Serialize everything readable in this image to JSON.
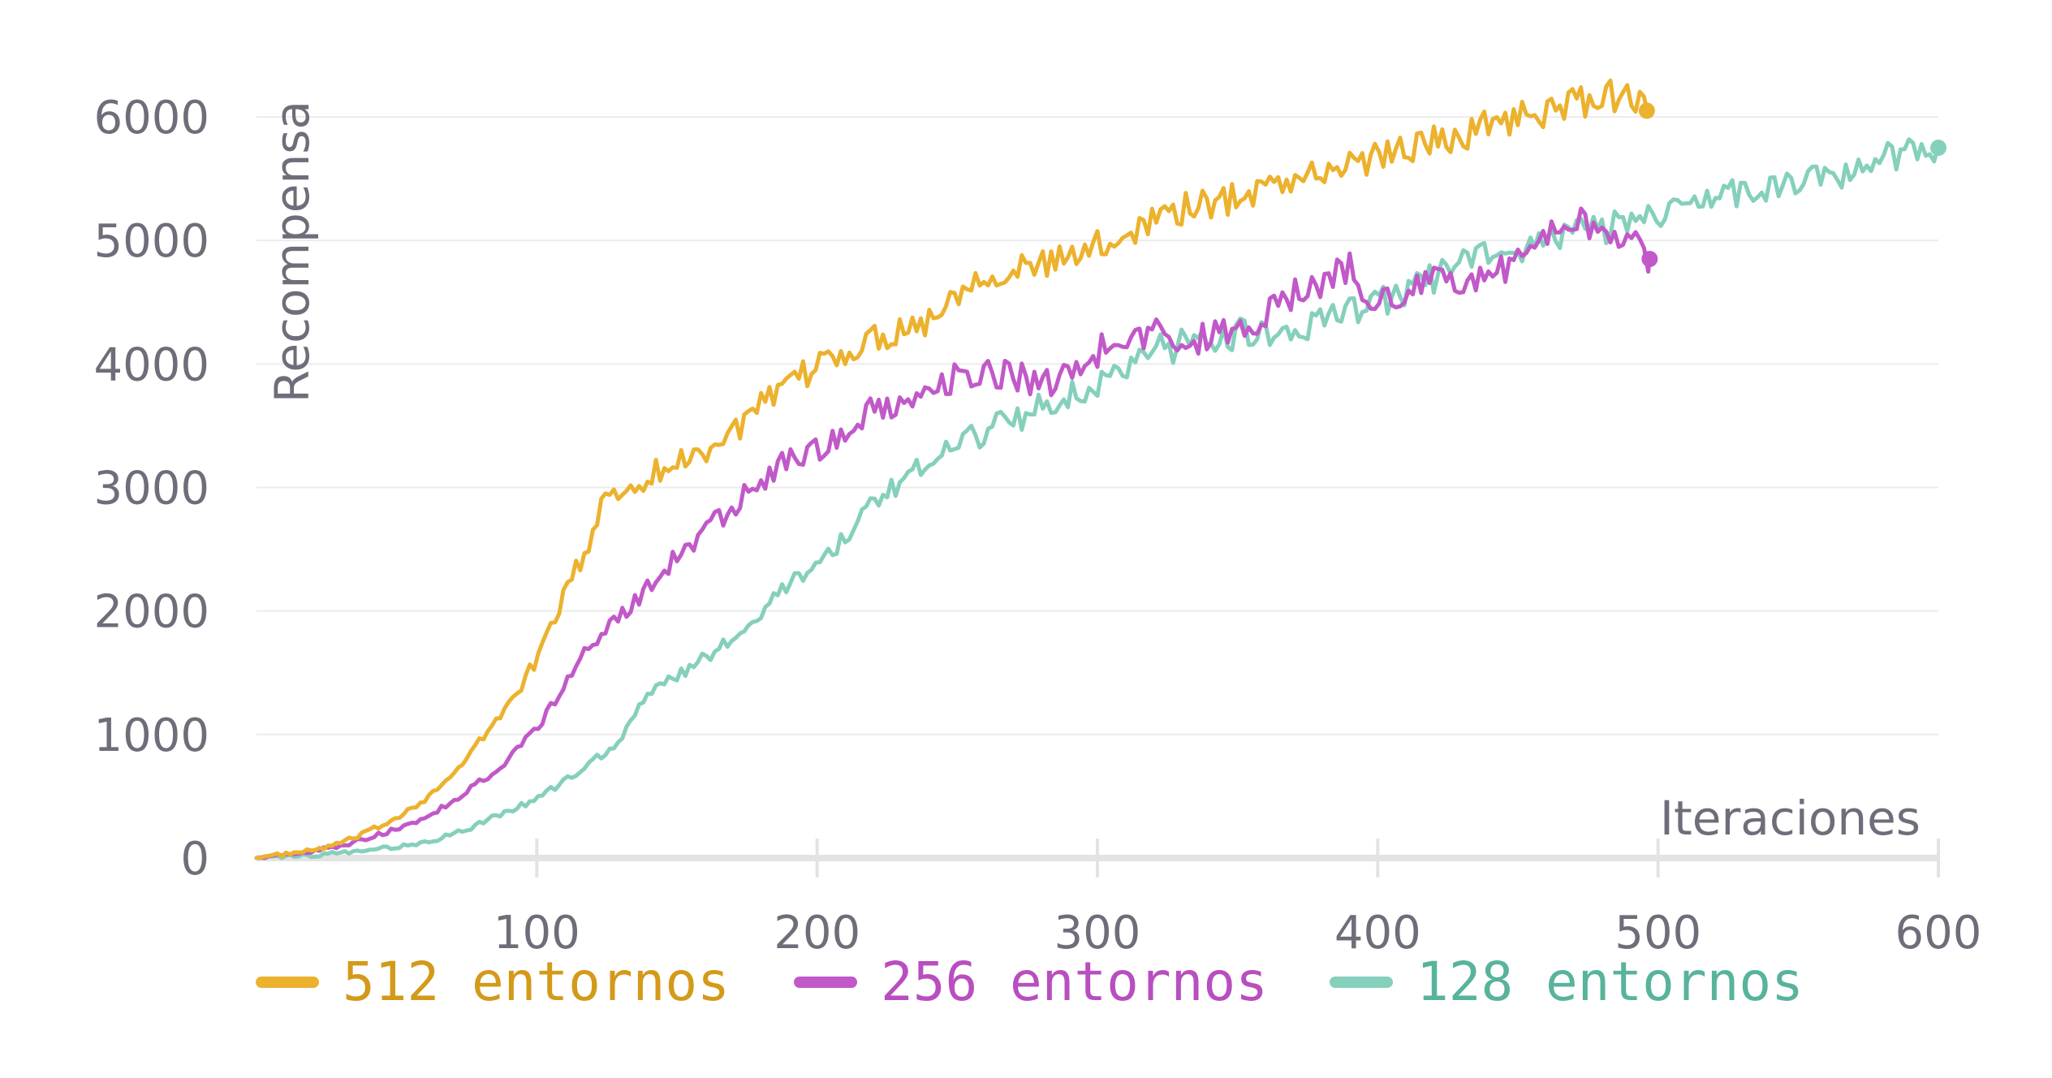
{
  "chart_data": {
    "type": "line",
    "title": "",
    "xlabel": "Iteraciones",
    "ylabel": "Recompensa",
    "xlim": [
      0,
      600
    ],
    "ylim": [
      0,
      6000
    ],
    "x_ticks": [
      100,
      200,
      300,
      400,
      500,
      600
    ],
    "y_ticks": [
      0,
      1000,
      2000,
      3000,
      4000,
      5000,
      6000
    ],
    "grid": "horizontal",
    "legend_position": "bottom",
    "series": [
      {
        "name": "512 entornos",
        "color": "#ecb22e",
        "text_color": "#d39a1a",
        "x": [
          0,
          10,
          20,
          30,
          40,
          50,
          60,
          70,
          80,
          90,
          100,
          110,
          120,
          125,
          130,
          140,
          150,
          160,
          170,
          180,
          190,
          200,
          210,
          220,
          230,
          240,
          250,
          260,
          270,
          280,
          290,
          300,
          310,
          320,
          330,
          340,
          350,
          360,
          370,
          380,
          390,
          400,
          410,
          420,
          430,
          440,
          450,
          460,
          470,
          480,
          490,
          496
        ],
        "y": [
          0,
          30,
          60,
          120,
          210,
          330,
          480,
          660,
          950,
          1250,
          1600,
          2150,
          2600,
          3000,
          2950,
          3100,
          3200,
          3300,
          3450,
          3650,
          3800,
          4000,
          4100,
          4200,
          4300,
          4350,
          4600,
          4750,
          4750,
          4800,
          4850,
          4950,
          5050,
          5200,
          5250,
          5300,
          5350,
          5450,
          5500,
          5550,
          5600,
          5700,
          5750,
          5800,
          5850,
          5950,
          6000,
          6050,
          6100,
          6150,
          6200,
          6050
        ]
      },
      {
        "name": "256 entornos",
        "color": "#c159c9",
        "text_color": "#b84ec0",
        "x": [
          0,
          10,
          20,
          30,
          40,
          50,
          60,
          70,
          80,
          90,
          100,
          110,
          120,
          130,
          140,
          150,
          160,
          170,
          180,
          190,
          200,
          210,
          220,
          230,
          240,
          250,
          260,
          270,
          280,
          290,
          300,
          310,
          320,
          330,
          340,
          350,
          360,
          370,
          380,
          390,
          400,
          410,
          420,
          430,
          440,
          450,
          460,
          470,
          480,
          490,
          497
        ],
        "y": [
          0,
          20,
          50,
          100,
          160,
          240,
          330,
          450,
          620,
          800,
          1050,
          1400,
          1750,
          1950,
          2200,
          2450,
          2650,
          2850,
          3050,
          3250,
          3300,
          3450,
          3650,
          3700,
          3800,
          3900,
          3950,
          3900,
          3850,
          3900,
          4100,
          4200,
          4250,
          4150,
          4250,
          4300,
          4400,
          4550,
          4650,
          4800,
          4450,
          4600,
          4650,
          4700,
          4700,
          4850,
          5050,
          5150,
          5100,
          5050,
          4850
        ]
      },
      {
        "name": "128 entornos",
        "color": "#85d0bc",
        "text_color": "#58b39d",
        "x": [
          0,
          10,
          20,
          30,
          40,
          50,
          60,
          70,
          80,
          90,
          100,
          110,
          120,
          130,
          140,
          150,
          160,
          170,
          180,
          190,
          200,
          210,
          220,
          230,
          240,
          250,
          260,
          270,
          280,
          290,
          300,
          310,
          320,
          330,
          340,
          350,
          360,
          370,
          380,
          390,
          400,
          410,
          420,
          430,
          440,
          450,
          460,
          470,
          480,
          490,
          500,
          510,
          520,
          530,
          540,
          550,
          560,
          570,
          580,
          590,
          600
        ],
        "y": [
          0,
          10,
          20,
          40,
          60,
          90,
          130,
          190,
          280,
          380,
          480,
          620,
          780,
          950,
          1350,
          1480,
          1620,
          1800,
          2000,
          2200,
          2400,
          2600,
          2850,
          3050,
          3250,
          3350,
          3450,
          3550,
          3650,
          3750,
          3850,
          4000,
          4100,
          4150,
          4200,
          4250,
          4250,
          4300,
          4350,
          4450,
          4500,
          4600,
          4700,
          4800,
          4900,
          4950,
          5000,
          5050,
          5100,
          5150,
          5200,
          5300,
          5350,
          5400,
          5450,
          5450,
          5500,
          5550,
          5650,
          5750,
          5750
        ]
      }
    ]
  }
}
